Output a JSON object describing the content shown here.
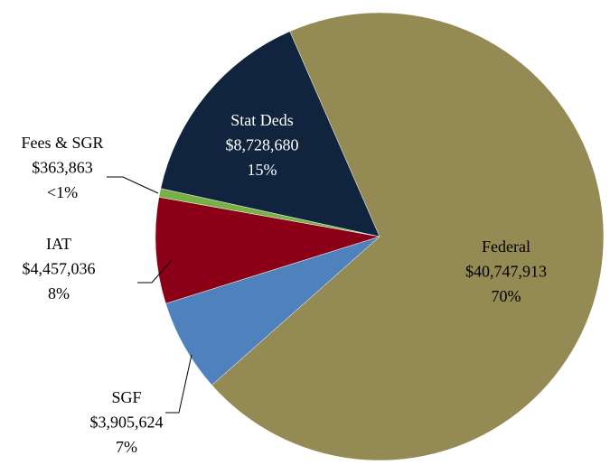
{
  "chart_data": {
    "type": "pie",
    "categories": [
      "Federal",
      "SGF",
      "IAT",
      "Fees & SGR",
      "Stat Deds"
    ],
    "values": [
      40747913,
      3905624,
      4457036,
      363863,
      8728680
    ],
    "value_labels": [
      "$40,747,913",
      "$3,905,624",
      "$4,457,036",
      "$363,863",
      "$8,728,680"
    ],
    "percent_labels": [
      "70%",
      "7%",
      "8%",
      "<1%",
      "15%"
    ],
    "colors": [
      "#948a54",
      "#4f81bd",
      "#8b0016",
      "#77b144",
      "#10243e"
    ]
  }
}
